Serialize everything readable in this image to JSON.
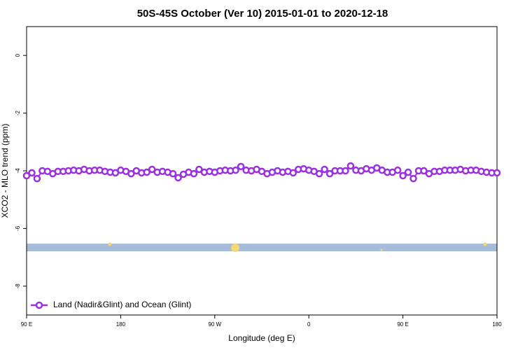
{
  "chart_data": {
    "type": "line",
    "title": "50S-45S October (Ver 10)   2015-01-01 to 2020-12-18",
    "xlabel": "Longitude (deg E)",
    "ylabel": "XCO2 - MLO trend (ppm)",
    "x": [
      90,
      95,
      100,
      105,
      110,
      115,
      120,
      125,
      130,
      135,
      140,
      145,
      150,
      155,
      160,
      165,
      170,
      175,
      180,
      185,
      190,
      195,
      200,
      205,
      210,
      215,
      220,
      225,
      230,
      235,
      240,
      245,
      250,
      255,
      260,
      265,
      270,
      275,
      280,
      285,
      290,
      295,
      300,
      305,
      310,
      315,
      320,
      325,
      330,
      335,
      340,
      345,
      350,
      355,
      360,
      365,
      370,
      375,
      380,
      385,
      390,
      395,
      400,
      405,
      410,
      415,
      420,
      425,
      430,
      435,
      440,
      445,
      450,
      455,
      460,
      465,
      470,
      475,
      480,
      485,
      490,
      495,
      500,
      505,
      510,
      515,
      520,
      525,
      530,
      535,
      540
    ],
    "series": [
      {
        "name": "Land (Nadir&Glint) and Ocean (Glint)",
        "color": "#9b30e0",
        "values": [
          -4.17,
          -4.07,
          -4.27,
          -4.0,
          -4.02,
          -4.1,
          -4.02,
          -4.02,
          -4.0,
          -3.98,
          -4.0,
          -3.95,
          -4.0,
          -3.98,
          -3.98,
          -4.02,
          -4.05,
          -4.07,
          -3.98,
          -4.02,
          -4.1,
          -4.0,
          -4.07,
          -4.05,
          -3.95,
          -4.05,
          -4.02,
          -4.05,
          -4.1,
          -4.24,
          -4.12,
          -4.05,
          -4.1,
          -3.95,
          -4.05,
          -4.02,
          -4.05,
          -4.0,
          -3.98,
          -4.0,
          -3.98,
          -3.85,
          -3.98,
          -4.0,
          -3.95,
          -4.02,
          -4.1,
          -4.05,
          -4.0,
          -4.05,
          -4.02,
          -4.07,
          -3.95,
          -3.93,
          -3.98,
          -4.02,
          -4.1,
          -3.95,
          -4.1,
          -4.0,
          -4.0,
          -4.0,
          -3.83,
          -3.98,
          -4.0,
          -3.93,
          -3.98,
          -3.9,
          -3.98,
          -4.05,
          -4.05,
          -3.98,
          -4.17,
          -4.05,
          -4.27,
          -4.0,
          -4.0,
          -4.1,
          -4.02,
          -4.02,
          -3.98,
          -3.98,
          -3.98,
          -3.95,
          -4.0,
          -3.98,
          -3.98,
          -4.02,
          -4.05,
          -4.07,
          -4.07
        ]
      }
    ],
    "xlim": [
      90,
      540
    ],
    "xticks": [
      {
        "value": 90,
        "label": "90 E"
      },
      180,
      {
        "value": 270,
        "label": "90 W"
      },
      {
        "value": 360,
        "label": "0"
      },
      {
        "value": 450,
        "label": "90 E"
      },
      {
        "value": 540,
        "label": "180"
      }
    ],
    "ylim": [
      -9,
      1
    ],
    "yticks": [
      0,
      -2,
      -4,
      -6,
      -8
    ],
    "legend": "bottomleft"
  }
}
